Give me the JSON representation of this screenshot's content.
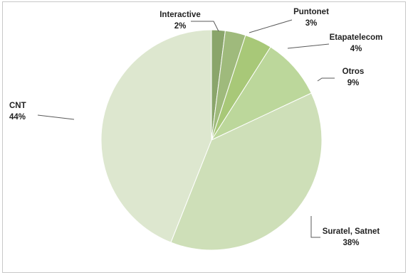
{
  "chart_data": {
    "type": "pie",
    "slices": [
      {
        "label": "Interactive",
        "value": 2,
        "value_label": "2%",
        "color": "#8aa56b"
      },
      {
        "label": "Puntonet",
        "value": 3,
        "value_label": "3%",
        "color": "#9fba7c"
      },
      {
        "label": "Etapatelecom",
        "value": 4,
        "value_label": "4%",
        "color": "#a8c878"
      },
      {
        "label": "Otros",
        "value": 9,
        "value_label": "9%",
        "color": "#bcd79b"
      },
      {
        "label": "Suratel, Satnet",
        "value": 38,
        "value_label": "38%",
        "color": "#cedfb8"
      },
      {
        "label": "CNT",
        "value": 44,
        "value_label": "44%",
        "color": "#dde7cf"
      }
    ],
    "start_angle_deg": 0,
    "direction": "clockwise",
    "legend": "none",
    "data_labels": "category name and percent, outside with leader lines"
  }
}
